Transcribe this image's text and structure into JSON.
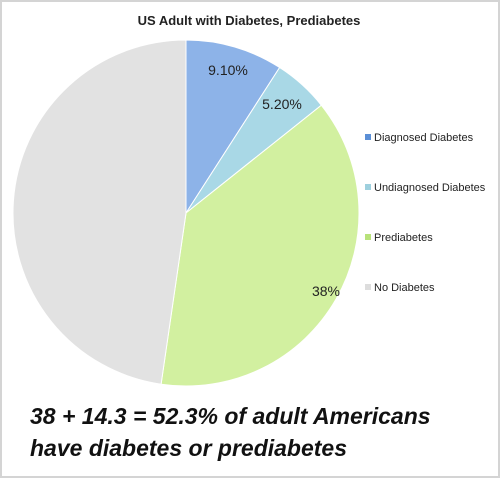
{
  "chart_data": {
    "type": "pie",
    "title": "US Adult with Diabetes, Prediabetes",
    "slices": [
      {
        "label": "Diagnosed Diabetes",
        "value": 9.1,
        "display": "9.10%",
        "color": "#8db3e8",
        "shown": true
      },
      {
        "label": "Undiagnosed Diabetes",
        "value": 5.2,
        "display": "5.20%",
        "color": "#a9d8e6",
        "shown": true
      },
      {
        "label": "Prediabetes",
        "value": 38,
        "display": "38%",
        "color": "#d2f0a0",
        "shown": true
      },
      {
        "label": "No Diabetes",
        "value": 47.7,
        "display": "",
        "color": "#e2e2e2",
        "shown": false
      }
    ],
    "legend_position": "right",
    "legend_colors": [
      "#5b8fd6",
      "#9ed0de",
      "#b8e27a",
      "#dddddd"
    ]
  },
  "caption": {
    "line1": "38 + 14.3 = 52.3% of adult Americans",
    "line2": "have diabetes or prediabetes"
  }
}
